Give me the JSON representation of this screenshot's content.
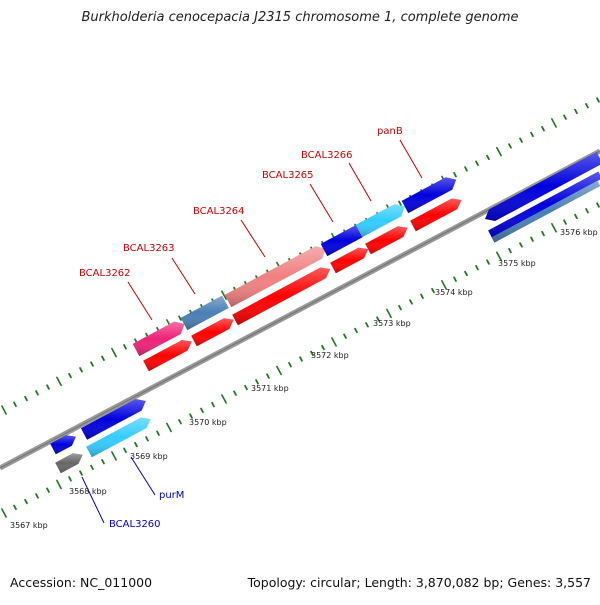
{
  "title": "Burkholderia cenocepacia J2315 chromosome 1, complete genome",
  "footer": {
    "accession": "Accession: NC_011000",
    "summary": "Topology: circular; Length: 3,870,082 bp; Genes: 3,557"
  },
  "kbp_labels": [
    "3567 kbp",
    "3568 kbp",
    "3569 kbp",
    "3570 kbp",
    "3571 kbp",
    "3572 kbp",
    "3573 kbp",
    "3574 kbp",
    "3575 kbp",
    "3576 kbp"
  ],
  "gene_labels": [
    {
      "text": "BCAL3262",
      "color": "#cc0000"
    },
    {
      "text": "BCAL3263",
      "color": "#cc0000"
    },
    {
      "text": "BCAL3264",
      "color": "#cc0000"
    },
    {
      "text": "BCAL3265",
      "color": "#cc0000"
    },
    {
      "text": "BCAL3266",
      "color": "#cc0000"
    },
    {
      "text": "panB",
      "color": "#cc0000"
    },
    {
      "text": "purM",
      "color": "#0000cc"
    },
    {
      "text": "BCAL3260",
      "color": "#0000cc"
    }
  ],
  "colors": {
    "backbone": "#888888",
    "tick": "#1f7a1f",
    "cds_red": "#ff0000",
    "gene_blue": "#0000dd",
    "light_blue": "#33ccff",
    "steel_blue": "#4a7fb5",
    "pink": "#ee2277",
    "salmon": "#f08080",
    "gray_feature": "#666666"
  }
}
